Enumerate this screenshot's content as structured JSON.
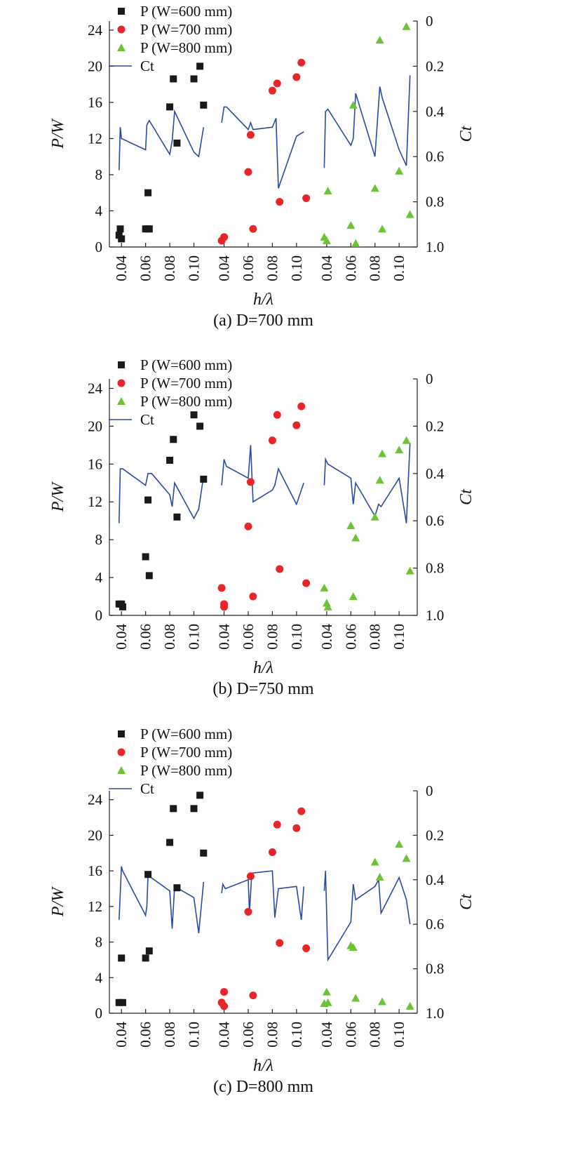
{
  "colors": {
    "w600": "#1a1a1a",
    "w700": "#e8262a",
    "w800": "#6cc334",
    "ct_line": "#2a4aa0",
    "axis": "#222222"
  },
  "common": {
    "x_label": "h/λ",
    "y_left_label": "P/W",
    "y_right_label": "Ct",
    "x_ticks": [
      "0.04",
      "0.06",
      "0.08",
      "0.10",
      "0.04",
      "0.06",
      "0.08",
      "0.10",
      "0.04",
      "0.06",
      "0.08",
      "0.10"
    ],
    "legend": {
      "w600": "P (W=600 mm)",
      "w700": "P (W=700 mm)",
      "w800": "P (W=800 mm)",
      "ct": "Ct"
    }
  },
  "chart_data": [
    {
      "type": "scatter",
      "caption": "(a) D=700 mm",
      "ylim_left": [
        0,
        25
      ],
      "ylim_right": [
        0,
        1.0
      ],
      "y_left_ticks": [
        0,
        4,
        8,
        12,
        16,
        20,
        24
      ],
      "y_right_ticks": [
        0,
        0.2,
        0.4,
        0.6,
        0.8,
        1.0
      ],
      "legend_placement": "top-left",
      "series": [
        {
          "name": "P (W=600 mm)",
          "key": "w600",
          "marker": "square",
          "x": [
            0.038,
            0.039,
            0.04,
            0.06,
            0.062,
            0.063,
            0.062,
            0.08,
            0.083,
            0.086,
            0.1,
            0.105,
            0.108
          ],
          "y": [
            1.3,
            2.0,
            0.9,
            2.0,
            2.0,
            2.0,
            6.0,
            15.5,
            18.6,
            11.5,
            18.6,
            20.0,
            15.7
          ]
        },
        {
          "name": "P (W=700 mm)",
          "key": "w700",
          "marker": "circle",
          "x": [
            0.038,
            0.04,
            0.04,
            0.06,
            0.062,
            0.064,
            0.08,
            0.084,
            0.086,
            0.1,
            0.104,
            0.108
          ],
          "y": [
            0.7,
            1.1,
            1.1,
            8.3,
            12.4,
            2.0,
            17.3,
            18.1,
            5.0,
            18.8,
            20.4,
            5.4
          ]
        },
        {
          "name": "P (W=800 mm)",
          "key": "w800",
          "marker": "triangle",
          "x": [
            0.038,
            0.04,
            0.041,
            0.06,
            0.062,
            0.064,
            0.08,
            0.084,
            0.086,
            0.1,
            0.106,
            0.109
          ],
          "y": [
            1.1,
            0.7,
            6.2,
            2.4,
            15.7,
            0.4,
            6.5,
            22.9,
            2.0,
            8.4,
            24.4,
            3.6
          ]
        }
      ],
      "ct_segments": [
        {
          "x": [
            0.038,
            0.039,
            0.04,
            0.06,
            0.061,
            0.063,
            0.08,
            0.082,
            0.084,
            0.1,
            0.104,
            0.108
          ],
          "y": [
            0.66,
            0.47,
            0.52,
            0.57,
            0.46,
            0.44,
            0.59,
            0.53,
            0.4,
            0.58,
            0.6,
            0.47
          ]
        },
        {
          "x": [
            0.038,
            0.04,
            0.042,
            0.06,
            0.062,
            0.064,
            0.08,
            0.083,
            0.085,
            0.1,
            0.106
          ],
          "y": [
            0.45,
            0.38,
            0.38,
            0.48,
            0.45,
            0.48,
            0.47,
            0.43,
            0.74,
            0.51,
            0.49
          ]
        },
        {
          "x": [
            0.038,
            0.039,
            0.041,
            0.06,
            0.062,
            0.064,
            0.08,
            0.084,
            0.086,
            0.1,
            0.106,
            0.109
          ],
          "y": [
            0.65,
            0.4,
            0.39,
            0.55,
            0.52,
            0.32,
            0.6,
            0.29,
            0.34,
            0.57,
            0.64,
            0.24
          ]
        }
      ]
    },
    {
      "type": "scatter",
      "caption": "(b) D=750 mm",
      "ylim_left": [
        0,
        25
      ],
      "ylim_right": [
        0,
        1.0
      ],
      "y_left_ticks": [
        0,
        4,
        8,
        12,
        16,
        20,
        24
      ],
      "y_right_ticks": [
        0,
        0.2,
        0.4,
        0.6,
        0.8,
        1.0
      ],
      "legend_placement": "top-left",
      "series": [
        {
          "name": "P (W=600 mm)",
          "key": "w600",
          "marker": "square",
          "x": [
            0.038,
            0.04,
            0.041,
            0.06,
            0.062,
            0.063,
            0.08,
            0.083,
            0.086,
            0.1,
            0.105,
            0.108
          ],
          "y": [
            1.2,
            1.2,
            0.9,
            6.2,
            12.2,
            4.2,
            16.4,
            18.6,
            10.4,
            21.2,
            20.0,
            14.4
          ]
        },
        {
          "name": "P (W=700 mm)",
          "key": "w700",
          "marker": "circle",
          "x": [
            0.038,
            0.04,
            0.04,
            0.06,
            0.062,
            0.064,
            0.08,
            0.084,
            0.086,
            0.1,
            0.104,
            0.108
          ],
          "y": [
            2.9,
            1.2,
            0.9,
            9.4,
            14.1,
            2.0,
            18.5,
            21.2,
            4.9,
            20.1,
            22.1,
            3.4
          ]
        },
        {
          "name": "P (W=800 mm)",
          "key": "w800",
          "marker": "triangle",
          "x": [
            0.038,
            0.04,
            0.041,
            0.06,
            0.062,
            0.064,
            0.08,
            0.084,
            0.086,
            0.1,
            0.106,
            0.109
          ],
          "y": [
            2.9,
            1.3,
            0.9,
            9.5,
            2.0,
            8.2,
            10.4,
            14.3,
            17.1,
            17.5,
            18.5,
            4.7
          ]
        }
      ],
      "ct_segments": [
        {
          "x": [
            0.038,
            0.039,
            0.041,
            0.06,
            0.062,
            0.065,
            0.08,
            0.082,
            0.084,
            0.1,
            0.104,
            0.108
          ],
          "y": [
            0.61,
            0.38,
            0.38,
            0.45,
            0.4,
            0.4,
            0.49,
            0.54,
            0.44,
            0.59,
            0.55,
            0.41
          ]
        },
        {
          "x": [
            0.038,
            0.04,
            0.042,
            0.06,
            0.062,
            0.064,
            0.08,
            0.082,
            0.085,
            0.1,
            0.106
          ],
          "y": [
            0.45,
            0.34,
            0.37,
            0.42,
            0.28,
            0.52,
            0.47,
            0.45,
            0.38,
            0.53,
            0.44
          ]
        },
        {
          "x": [
            0.038,
            0.039,
            0.041,
            0.06,
            0.062,
            0.064,
            0.08,
            0.083,
            0.085,
            0.1,
            0.106,
            0.109
          ],
          "y": [
            0.45,
            0.34,
            0.36,
            0.42,
            0.53,
            0.44,
            0.58,
            0.53,
            0.54,
            0.42,
            0.61,
            0.27
          ]
        }
      ]
    },
    {
      "type": "scatter",
      "caption": "(c) D=800 mm",
      "ylim_left": [
        0,
        25
      ],
      "ylim_right": [
        0,
        1.0
      ],
      "y_left_ticks": [
        0,
        4,
        8,
        12,
        16,
        20,
        24
      ],
      "y_right_ticks": [
        0,
        0.2,
        0.4,
        0.6,
        0.8,
        1.0
      ],
      "legend_placement": "top-left",
      "series": [
        {
          "name": "P (W=600 mm)",
          "key": "w600",
          "marker": "square",
          "x": [
            0.038,
            0.04,
            0.041,
            0.06,
            0.062,
            0.063,
            0.08,
            0.083,
            0.086,
            0.1,
            0.105,
            0.108
          ],
          "y": [
            1.2,
            6.2,
            1.2,
            6.2,
            15.6,
            7.0,
            19.2,
            23.0,
            14.1,
            23.0,
            24.5,
            18.0
          ]
        },
        {
          "name": "P (W=700 mm)",
          "key": "w700",
          "marker": "circle",
          "x": [
            0.038,
            0.04,
            0.04,
            0.06,
            0.062,
            0.064,
            0.08,
            0.084,
            0.086,
            0.1,
            0.104,
            0.108
          ],
          "y": [
            1.2,
            2.4,
            0.8,
            11.4,
            15.4,
            2.0,
            18.1,
            21.2,
            7.9,
            20.8,
            22.7,
            7.3
          ]
        },
        {
          "name": "P (W=800 mm)",
          "key": "w800",
          "marker": "triangle",
          "x": [
            0.038,
            0.04,
            0.041,
            0.06,
            0.062,
            0.064,
            0.08,
            0.084,
            0.086,
            0.1,
            0.106,
            0.109
          ],
          "y": [
            1.1,
            2.4,
            1.2,
            7.6,
            7.4,
            1.7,
            17.0,
            15.3,
            1.3,
            19.0,
            17.4,
            0.8
          ]
        }
      ],
      "ct_segments": [
        {
          "x": [
            0.038,
            0.04,
            0.041,
            0.06,
            0.061,
            0.062,
            0.08,
            0.082,
            0.084,
            0.1,
            0.104,
            0.108
          ],
          "y": [
            0.58,
            0.34,
            0.36,
            0.56,
            0.52,
            0.38,
            0.45,
            0.62,
            0.43,
            0.48,
            0.64,
            0.41
          ]
        },
        {
          "x": [
            0.038,
            0.039,
            0.041,
            0.06,
            0.061,
            0.063,
            0.08,
            0.082,
            0.085,
            0.1,
            0.104,
            0.106
          ],
          "y": [
            0.46,
            0.42,
            0.44,
            0.4,
            0.55,
            0.37,
            0.36,
            0.57,
            0.44,
            0.43,
            0.58,
            0.43
          ]
        },
        {
          "x": [
            0.038,
            0.039,
            0.041,
            0.06,
            0.062,
            0.064,
            0.08,
            0.083,
            0.085,
            0.1,
            0.106,
            0.109
          ],
          "y": [
            0.45,
            0.36,
            0.76,
            0.59,
            0.42,
            0.49,
            0.43,
            0.4,
            0.55,
            0.39,
            0.49,
            0.6
          ]
        }
      ]
    }
  ]
}
